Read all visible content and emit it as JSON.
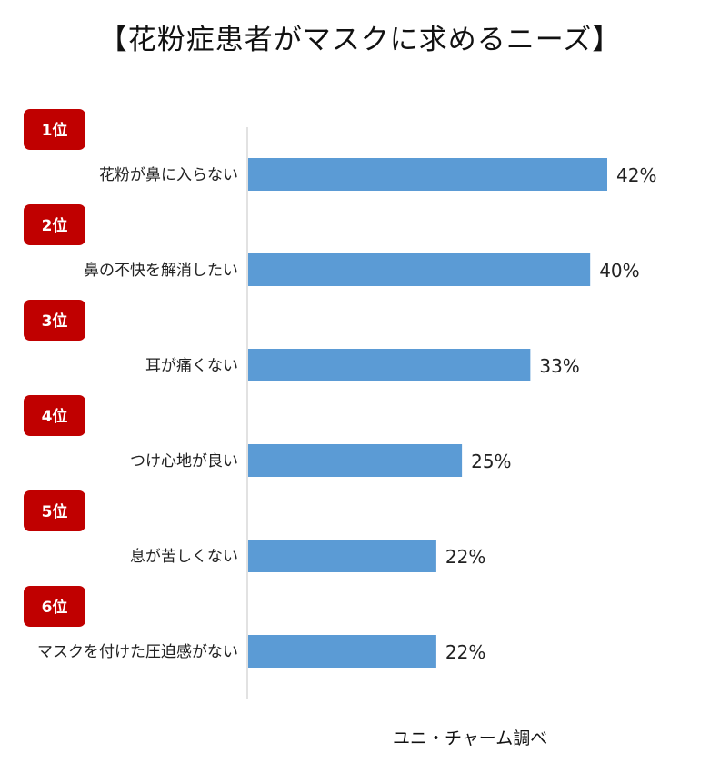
{
  "title": "【花粉症患者がマスクに求めるニーズ】",
  "source": "ユニ・チャーム調べ",
  "colors": {
    "bar": "#5b9bd5",
    "badge": "#c00000",
    "axis": "#d9d9d9"
  },
  "chart_data": {
    "type": "bar",
    "orientation": "horizontal",
    "title": "【花粉症患者がマスクに求めるニーズ】",
    "categories": [
      "花粉が鼻に入らない",
      "鼻の不快を解消したい",
      "耳が痛くない",
      "つけ心地が良い",
      "息が苦しくない",
      "マスクを付けた圧迫感がない"
    ],
    "ranks": [
      "1位",
      "2位",
      "3位",
      "4位",
      "5位",
      "6位"
    ],
    "values": [
      42,
      40,
      33,
      25,
      22,
      22
    ],
    "value_labels": [
      "42%",
      "40%",
      "33%",
      "25%",
      "22%",
      "22%"
    ],
    "unit": "%",
    "xlim": [
      0,
      45
    ],
    "grid": false,
    "legend": "none"
  }
}
